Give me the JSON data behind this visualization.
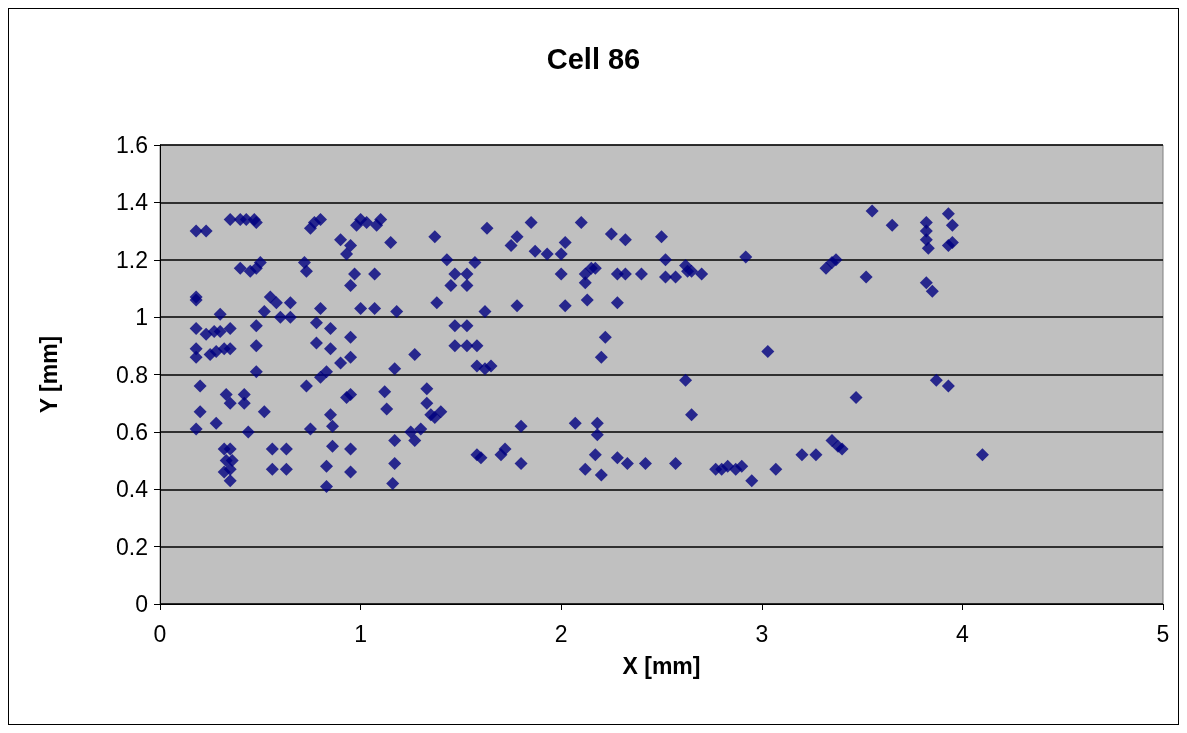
{
  "chart_data": {
    "type": "scatter",
    "title": "Cell 86",
    "xlabel": "X [mm]",
    "ylabel": "Y [mm]",
    "xlim": [
      0,
      5
    ],
    "xticks": [
      0,
      1,
      2,
      3,
      4,
      5
    ],
    "ylim": [
      0,
      1.6
    ],
    "yticks": [
      0,
      0.2,
      0.4,
      0.6,
      0.8,
      1,
      1.2,
      1.4,
      1.6
    ],
    "grid": "y",
    "marker": "diamond",
    "series": [
      {
        "color": "#000080",
        "x": [
          0.18,
          0.23,
          0.35,
          0.4,
          0.43,
          0.47,
          0.48,
          0.4,
          0.45,
          0.48,
          0.5,
          0.18,
          0.18,
          0.55,
          0.52,
          0.58,
          0.6,
          0.65,
          0.65,
          0.18,
          0.18,
          0.18,
          0.23,
          0.25,
          0.27,
          0.28,
          0.3,
          0.3,
          0.32,
          0.35,
          0.35,
          0.2,
          0.2,
          0.18,
          0.28,
          0.33,
          0.35,
          0.42,
          0.42,
          0.44,
          0.48,
          0.48,
          0.48,
          0.52,
          0.32,
          0.35,
          0.33,
          0.35,
          0.32,
          0.35,
          0.36,
          0.56,
          0.56,
          0.63,
          0.63,
          0.72,
          0.73,
          0.75,
          0.77,
          0.8,
          0.78,
          0.8,
          0.78,
          0.73,
          0.75,
          0.8,
          0.83,
          0.85,
          0.85,
          0.85,
          0.86,
          0.86,
          0.83,
          0.83,
          0.9,
          0.93,
          0.95,
          0.98,
          1.0,
          1.03,
          1.08,
          1.1,
          0.97,
          0.95,
          1.07,
          1.0,
          1.07,
          1.15,
          1.18,
          0.9,
          0.95,
          0.95,
          0.95,
          0.93,
          0.95,
          0.95,
          1.12,
          1.13,
          1.17,
          1.17,
          1.17,
          1.16,
          1.27,
          1.25,
          1.27,
          1.3,
          1.33,
          1.33,
          1.35,
          1.37,
          1.4,
          1.37,
          1.38,
          1.43,
          1.45,
          1.47,
          1.47,
          1.47,
          1.53,
          1.53,
          1.57,
          1.53,
          1.53,
          1.58,
          1.58,
          1.62,
          1.65,
          1.62,
          1.63,
          1.58,
          1.6,
          1.7,
          1.72,
          1.75,
          1.78,
          1.78,
          1.8,
          1.8,
          1.85,
          1.87,
          1.93,
          2.0,
          2.0,
          2.02,
          2.02,
          2.07,
          2.1,
          2.12,
          2.12,
          2.15,
          2.17,
          2.13,
          2.12,
          2.17,
          2.18,
          2.18,
          2.2,
          2.2,
          2.22,
          2.25,
          2.28,
          2.28,
          2.32,
          2.32,
          2.28,
          2.33,
          2.42,
          2.4,
          2.5,
          2.52,
          2.52,
          2.57,
          2.57,
          2.62,
          2.63,
          2.65,
          2.7,
          2.62,
          2.65,
          2.77,
          2.8,
          2.83,
          2.87,
          2.9,
          2.92,
          2.95,
          3.03,
          3.07,
          3.2,
          3.27,
          3.32,
          3.35,
          3.37,
          3.35,
          3.38,
          3.4,
          3.47,
          3.52,
          3.55,
          3.65,
          3.82,
          3.82,
          3.82,
          3.83,
          3.82,
          3.85,
          3.87,
          3.93,
          3.95,
          3.93,
          3.95,
          3.93,
          4.1
        ],
        "values": [
          1.3,
          1.3,
          1.34,
          1.34,
          1.34,
          1.34,
          1.33,
          1.17,
          1.16,
          1.17,
          1.19,
          1.06,
          1.07,
          1.07,
          1.02,
          1.05,
          1.0,
          1.05,
          1.0,
          0.96,
          0.89,
          0.86,
          0.94,
          0.87,
          0.95,
          0.88,
          1.01,
          0.95,
          0.89,
          0.96,
          0.89,
          0.76,
          0.67,
          0.61,
          0.63,
          0.73,
          0.7,
          0.73,
          0.7,
          0.6,
          0.81,
          0.9,
          0.97,
          0.67,
          0.54,
          0.54,
          0.5,
          0.47,
          0.46,
          0.43,
          0.5,
          0.54,
          0.47,
          0.54,
          0.47,
          1.19,
          1.16,
          1.31,
          1.33,
          1.34,
          0.98,
          1.03,
          0.91,
          0.76,
          0.61,
          0.79,
          0.81,
          0.89,
          0.96,
          0.66,
          0.62,
          0.55,
          0.48,
          0.41,
          1.27,
          1.22,
          1.25,
          1.32,
          1.34,
          1.33,
          1.32,
          1.34,
          1.15,
          1.11,
          1.15,
          1.03,
          1.03,
          1.26,
          1.02,
          0.84,
          0.93,
          0.86,
          0.73,
          0.72,
          0.54,
          0.46,
          0.74,
          0.68,
          0.82,
          0.57,
          0.49,
          0.42,
          0.87,
          0.6,
          0.57,
          0.61,
          0.75,
          0.7,
          0.66,
          0.65,
          0.67,
          1.28,
          1.05,
          1.2,
          1.11,
          1.15,
          0.97,
          0.9,
          1.11,
          1.15,
          1.19,
          0.97,
          0.9,
          0.9,
          0.83,
          0.82,
          0.83,
          1.02,
          1.31,
          0.52,
          0.51,
          0.52,
          0.54,
          1.25,
          1.28,
          1.04,
          0.62,
          0.49,
          1.33,
          1.23,
          1.22,
          1.15,
          1.22,
          1.26,
          1.04,
          0.63,
          1.33,
          1.15,
          1.12,
          1.17,
          1.17,
          1.06,
          0.47,
          0.52,
          0.63,
          0.59,
          0.45,
          0.86,
          0.93,
          1.29,
          1.15,
          1.05,
          1.27,
          1.15,
          0.51,
          0.49,
          0.49,
          1.15,
          1.28,
          1.2,
          1.14,
          1.14,
          0.49,
          1.18,
          1.16,
          1.16,
          1.15,
          0.78,
          0.66,
          0.47,
          0.47,
          0.48,
          0.47,
          0.48,
          1.21,
          0.43,
          0.88,
          0.47,
          0.52,
          0.52,
          1.17,
          1.19,
          1.2,
          0.57,
          0.55,
          0.54,
          0.72,
          1.14,
          1.37,
          1.32,
          1.33,
          1.3,
          1.27,
          1.24,
          1.12,
          1.09,
          0.78,
          1.36,
          1.32,
          1.25,
          1.26,
          0.76,
          0.52
        ]
      }
    ]
  }
}
